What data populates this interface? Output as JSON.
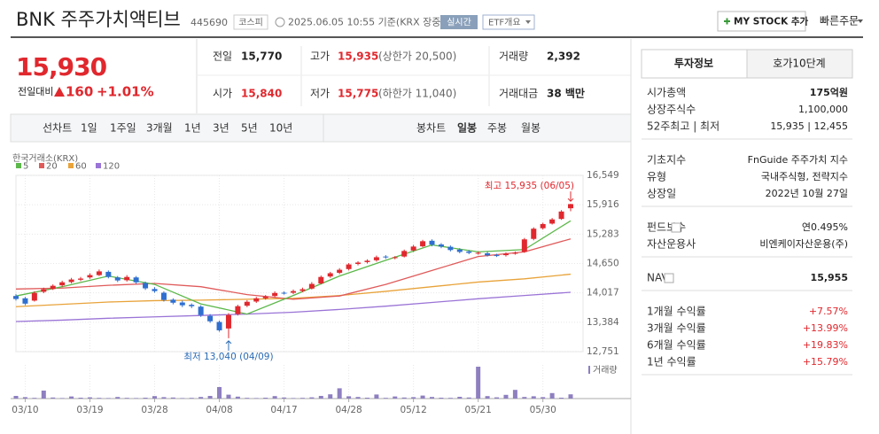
{
  "header": {
    "title": "BNK 주주가치액티브",
    "code": "445690",
    "market": "코스피",
    "timestamp": "2025.06.05 10:55 기준(KRX 장중)",
    "realtime": "실시간",
    "etf_overview": "ETF개요",
    "my_stock": "MY STOCK 추가",
    "quick_order": "빠른주문"
  },
  "quote": {
    "price": "15,930",
    "change_label": "전일대비",
    "change": "160",
    "change_rate": "+1.01%"
  },
  "stats": [
    {
      "label": "전일",
      "value": "15,770"
    },
    {
      "label": "고가",
      "value": "15,935",
      "note": "(상한가 20,500)"
    },
    {
      "label": "거래량",
      "value": "2,392"
    },
    {
      "label": "시가",
      "value": "15,840"
    },
    {
      "label": "저가",
      "value": "15,775",
      "note": "(하한가 11,040)"
    },
    {
      "label": "거래대금",
      "value": "38 백만"
    }
  ],
  "tabs": {
    "line_label": "선차트",
    "line_periods": [
      "1일",
      "1주일",
      "3개월",
      "1년",
      "3년",
      "5년",
      "10년"
    ],
    "candle_label": "봉차트",
    "candle_periods": [
      "일봉",
      "주봉",
      "월봉"
    ]
  },
  "info": {
    "tabs": [
      "투자정보",
      "호가10단계"
    ],
    "groups": [
      [
        [
          "시가총액",
          "175억원"
        ],
        [
          "상장주식수",
          "1,100,000"
        ],
        [
          "52주최고 | 최저",
          "15,935 | 12,455"
        ]
      ],
      [
        [
          "기초지수",
          "FnGuide 주주가치 지수"
        ],
        [
          "유형",
          "국내주식형, 전략지수"
        ],
        [
          "상장일",
          "2022년 10월 27일"
        ]
      ],
      [
        [
          "펀드보수",
          "연0.495%"
        ],
        [
          "자산운용사",
          "비엔케이자산운용(주)"
        ]
      ],
      [
        [
          "NAV",
          "15,955"
        ]
      ],
      [
        [
          "1개월 수익률",
          "+7.57%"
        ],
        [
          "3개월 수익률",
          "+13.99%"
        ],
        [
          "6개월 수익률",
          "+19.83%"
        ],
        [
          "1년 수익률",
          "+15.79%"
        ]
      ]
    ]
  },
  "chart_data": {
    "type": "candlestick",
    "source": "한국거래소(KRX)",
    "x": [
      "03/07",
      "03/10",
      "03/11",
      "03/12",
      "03/13",
      "03/14",
      "03/17",
      "03/18",
      "03/19",
      "03/20",
      "03/21",
      "03/24",
      "03/25",
      "03/26",
      "03/27",
      "03/28",
      "03/31",
      "04/01",
      "04/02",
      "04/03",
      "04/04",
      "04/07",
      "04/08",
      "04/09",
      "04/10",
      "04/11",
      "04/14",
      "04/15",
      "04/16",
      "04/17",
      "04/18",
      "04/21",
      "04/22",
      "04/23",
      "04/24",
      "04/25",
      "04/28",
      "04/29",
      "04/30",
      "05/02",
      "05/07",
      "05/08",
      "05/09",
      "05/12",
      "05/13",
      "05/14",
      "05/15",
      "05/16",
      "05/19",
      "05/20",
      "05/21",
      "05/22",
      "05/23",
      "05/26",
      "05/27",
      "05/28",
      "05/29",
      "05/30",
      "06/02",
      "06/04",
      "06/05"
    ],
    "open": [
      13950,
      13900,
      13850,
      14040,
      14100,
      14180,
      14250,
      14300,
      14350,
      14400,
      14470,
      14350,
      14290,
      14350,
      14230,
      14100,
      14020,
      13870,
      13810,
      13760,
      13720,
      13520,
      13390,
      13250,
      13560,
      13740,
      13830,
      13900,
      13950,
      14020,
      14020,
      14060,
      14110,
      14220,
      14370,
      14450,
      14530,
      14640,
      14680,
      14720,
      14800,
      14770,
      14800,
      14930,
      15020,
      15140,
      15060,
      15010,
      14950,
      14910,
      14870,
      14870,
      14830,
      14830,
      14870,
      14900,
      15180,
      15410,
      15510,
      15610,
      15840
    ],
    "high": [
      13990,
      13930,
      14050,
      14130,
      14200,
      14280,
      14340,
      14360,
      14440,
      14520,
      14500,
      14380,
      14400,
      14380,
      14260,
      14140,
      14050,
      13900,
      13850,
      13790,
      13750,
      13560,
      13420,
      13580,
      13760,
      13860,
      13930,
      13970,
      14050,
      14050,
      14090,
      14130,
      14250,
      14390,
      14470,
      14550,
      14660,
      14700,
      14740,
      14820,
      14830,
      14810,
      14950,
      15050,
      15160,
      15170,
      15090,
      15040,
      14980,
      14940,
      14910,
      14900,
      14860,
      14890,
      14910,
      15200,
      15430,
      15530,
      15630,
      15800,
      15935
    ],
    "low": [
      13850,
      13750,
      13830,
      14010,
      14080,
      14150,
      14220,
      14270,
      14320,
      14380,
      14330,
      14250,
      14260,
      14210,
      14080,
      14020,
      13830,
      13770,
      13710,
      13690,
      13500,
      13370,
      13180,
      13040,
      13530,
      13710,
      13800,
      13870,
      13920,
      13980,
      13990,
      14030,
      14090,
      14200,
      14340,
      14420,
      14500,
      14610,
      14650,
      14690,
      14750,
      14740,
      14780,
      14900,
      15000,
      15020,
      14980,
      14910,
      14870,
      14850,
      14840,
      14800,
      14790,
      14800,
      14840,
      14880,
      15150,
      15380,
      15490,
      15590,
      15775
    ],
    "close": [
      13885,
      13785,
      14015,
      14095,
      14170,
      14245,
      14305,
      14325,
      14400,
      14480,
      14360,
      14285,
      14360,
      14245,
      14115,
      14055,
      13865,
      13805,
      13750,
      13730,
      13540,
      13405,
      13210,
      13540,
      13730,
      13825,
      13900,
      13940,
      14015,
      14015,
      14055,
      14095,
      14210,
      14360,
      14440,
      14515,
      14630,
      14670,
      14710,
      14785,
      14785,
      14785,
      14920,
      15015,
      15130,
      15055,
      15015,
      14940,
      14900,
      14880,
      14880,
      14825,
      14825,
      14860,
      14880,
      15170,
      15400,
      15500,
      15600,
      15770,
      15930
    ],
    "volume": [
      1500,
      800,
      400,
      4500,
      600,
      300,
      1200,
      500,
      700,
      400,
      300,
      900,
      400,
      300,
      500,
      1400,
      800,
      600,
      300,
      400,
      900,
      1500,
      6500,
      2200,
      1100,
      400,
      300,
      500,
      1400,
      600,
      300,
      400,
      700,
      1500,
      2400,
      5800,
      1300,
      900,
      500,
      2300,
      400,
      1200,
      600,
      800,
      1700,
      900,
      500,
      400,
      1000,
      600,
      18000,
      1400,
      700,
      2100,
      4900,
      900,
      1300,
      800,
      3100,
      500,
      2392
    ],
    "volume_label": "거래량",
    "volume_color": "#8e7fc0",
    "up_color": "#e0282e",
    "down_color": "#2f6fd0",
    "moving_averages": [
      {
        "name": "5",
        "color": "#5cb84a",
        "x": [
          "03/07",
          "03/14",
          "03/21",
          "03/28",
          "04/04",
          "04/11",
          "04/18",
          "04/25",
          "05/07",
          "05/14",
          "05/21",
          "05/28",
          "06/05"
        ],
        "values": [
          13950,
          14150,
          14380,
          14200,
          13780,
          13560,
          13960,
          14380,
          14720,
          15050,
          14900,
          14950,
          15570
        ]
      },
      {
        "name": "20",
        "color": "#e05a5a",
        "x": [
          "03/07",
          "03/14",
          "03/21",
          "03/28",
          "04/04",
          "04/11",
          "04/18",
          "04/25",
          "05/07",
          "05/14",
          "05/21",
          "05/28",
          "06/05"
        ],
        "values": [
          14100,
          14120,
          14180,
          14220,
          14150,
          13980,
          13880,
          13950,
          14200,
          14500,
          14800,
          14900,
          15180
        ]
      },
      {
        "name": "60",
        "color": "#e8a33a",
        "x": [
          "03/07",
          "03/14",
          "03/21",
          "03/28",
          "04/04",
          "04/11",
          "04/18",
          "04/25",
          "05/07",
          "05/14",
          "05/21",
          "05/28",
          "06/05"
        ],
        "values": [
          13720,
          13770,
          13820,
          13850,
          13860,
          13880,
          13900,
          13960,
          14050,
          14150,
          14250,
          14320,
          14420
        ]
      },
      {
        "name": "120",
        "color": "#9a74d6",
        "x": [
          "03/07",
          "03/14",
          "03/21",
          "03/28",
          "04/04",
          "04/11",
          "04/18",
          "04/25",
          "05/07",
          "05/14",
          "05/21",
          "05/28",
          "06/05"
        ],
        "values": [
          13400,
          13430,
          13470,
          13500,
          13530,
          13560,
          13600,
          13660,
          13730,
          13810,
          13890,
          13960,
          14030
        ]
      }
    ],
    "ylim": [
      12751,
      16549
    ],
    "yticks": [
      {
        "value": 12751,
        "label": "12,751"
      },
      {
        "value": 13384,
        "label": "13,384"
      },
      {
        "value": 14017,
        "label": "14,017"
      },
      {
        "value": 14650,
        "label": "14,650"
      },
      {
        "value": 15283,
        "label": "15,283"
      },
      {
        "value": 15916,
        "label": "15,916"
      },
      {
        "value": 16549,
        "label": "16,549"
      }
    ],
    "xticks": [
      "03/10",
      "03/19",
      "03/28",
      "04/08",
      "04/17",
      "04/28",
      "05/12",
      "05/21",
      "05/30"
    ],
    "annotations": [
      {
        "text": "최고 15,935 (06/05)",
        "x": "06/05"
      },
      {
        "text": "최저 13,040 (04/09)",
        "x": "04/09"
      }
    ],
    "grid": true
  }
}
